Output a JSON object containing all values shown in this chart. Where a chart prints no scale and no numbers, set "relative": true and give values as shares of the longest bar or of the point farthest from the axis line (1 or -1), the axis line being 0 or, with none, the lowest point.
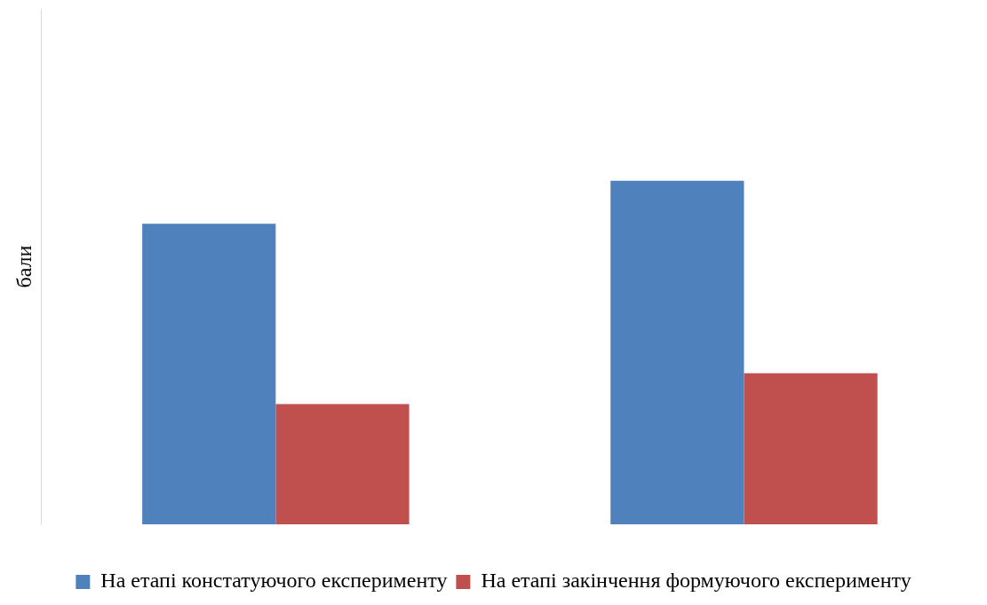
{
  "chart_data": {
    "type": "bar",
    "ylabel": "бали",
    "categories": [
      null,
      null
    ],
    "relative": true,
    "legend": "bottom",
    "series": [
      {
        "name": "На етапі констатуючого експерименту",
        "color": "#4f81bd",
        "values": [
          0.875,
          1
        ]
      },
      {
        "name": "На етапі закінчення формуючого експерименту",
        "color": "#c0504d",
        "values": [
          0.35,
          0.44
        ]
      }
    ]
  }
}
